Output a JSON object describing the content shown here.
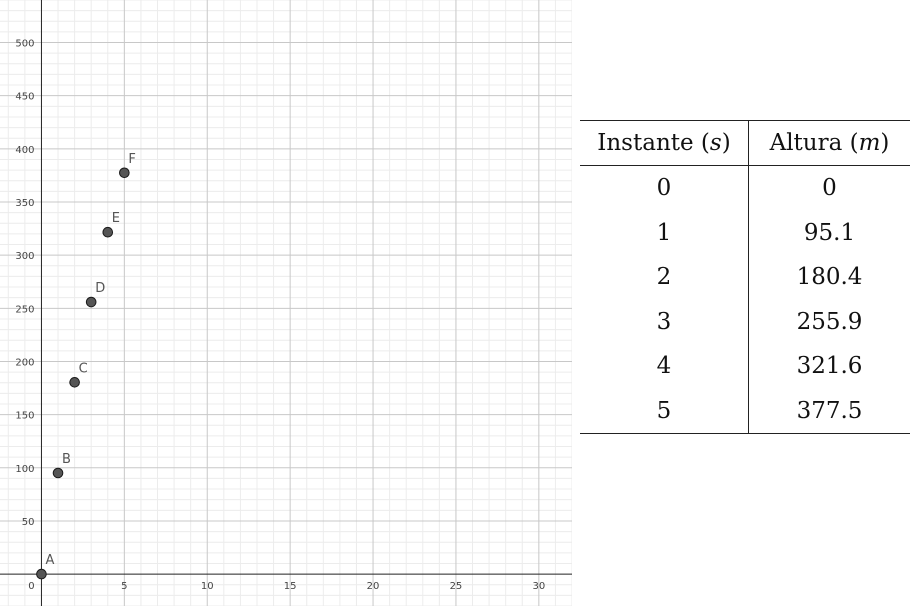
{
  "chart_data": {
    "type": "scatter",
    "points": [
      {
        "label": "A",
        "x": 0,
        "y": 0
      },
      {
        "label": "B",
        "x": 1,
        "y": 95.1
      },
      {
        "label": "C",
        "x": 2,
        "y": 180.4
      },
      {
        "label": "D",
        "x": 3,
        "y": 255.9
      },
      {
        "label": "E",
        "x": 4,
        "y": 321.6
      },
      {
        "label": "F",
        "x": 5,
        "y": 377.5
      }
    ],
    "xlim": [
      -2.5,
      32
    ],
    "ylim": [
      -30,
      540
    ],
    "x_ticks": [
      0,
      5,
      10,
      15,
      20,
      25,
      30
    ],
    "y_ticks": [
      50,
      100,
      150,
      200,
      250,
      300,
      350,
      400,
      450,
      500
    ],
    "grid": true,
    "point_color": "#555555"
  },
  "table": {
    "col1_header": "Instante",
    "col1_unit": "s",
    "col2_header": "Altura",
    "col2_unit": "m",
    "rows": [
      [
        "0",
        "0"
      ],
      [
        "1",
        "95.1"
      ],
      [
        "2",
        "180.4"
      ],
      [
        "3",
        "255.9"
      ],
      [
        "4",
        "321.6"
      ],
      [
        "5",
        "377.5"
      ]
    ]
  }
}
